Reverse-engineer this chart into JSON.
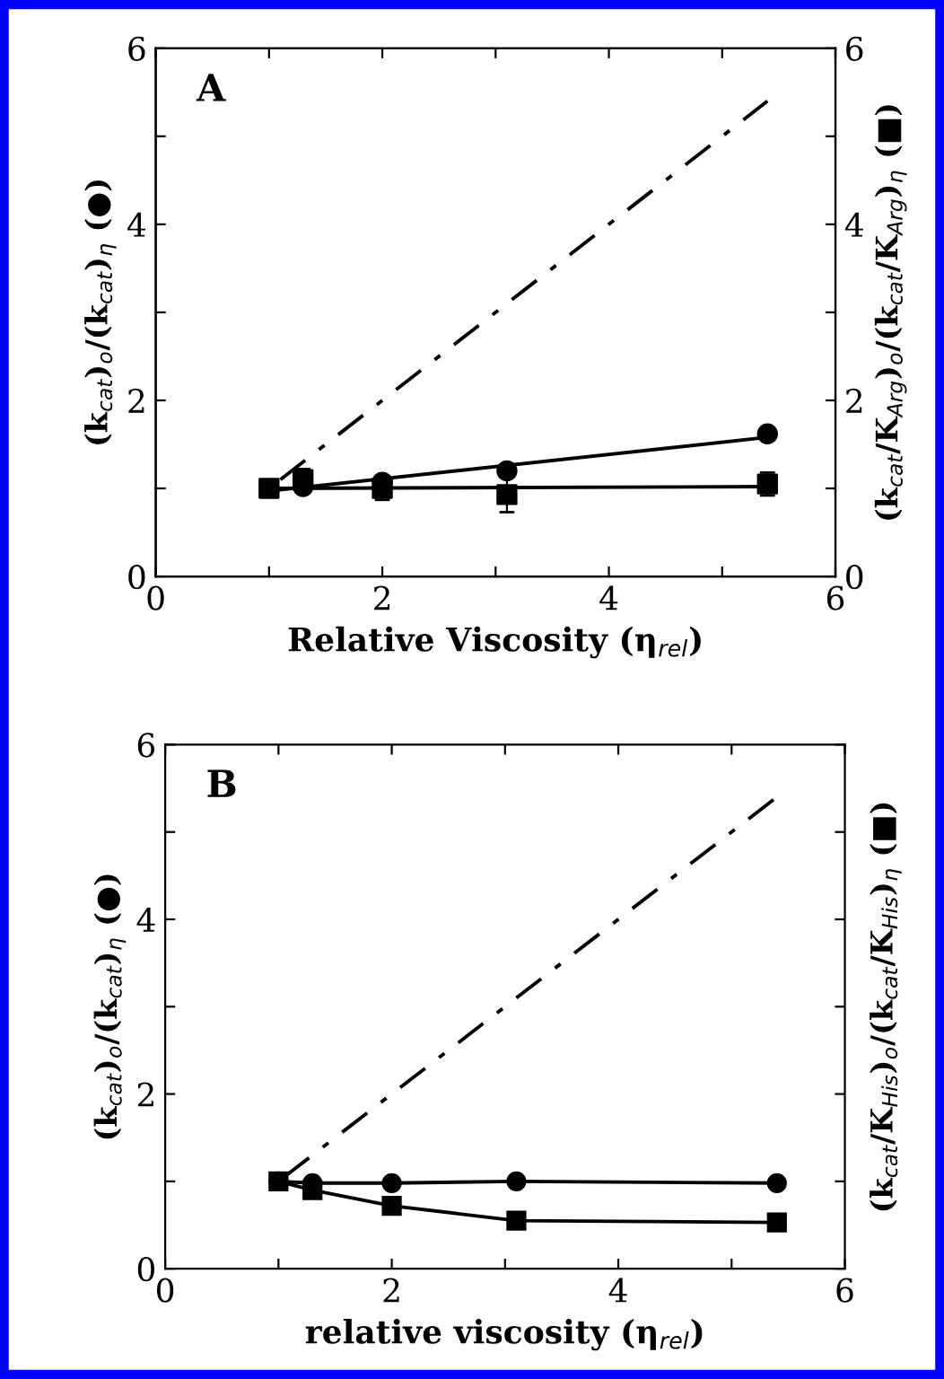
{
  "chart_data": [
    {
      "type": "scatter",
      "xlabel": "Relative Viscosity (η$_{rel}$)",
      "ylabel": "(k$_{cat}$)$_{o}$/(k$_{cat}$)$_{η}$ (●)",
      "y2label": "(k$_{cat}$/K$_{Arg}$)$_{o}$/(k$_{cat}$/K$_{Arg}$)$_{η}$ (■)",
      "annotations": [
        "A"
      ],
      "xlim": [
        0,
        6
      ],
      "xticks": [
        0,
        {
          "value": 1,
          "label": null
        },
        2,
        {
          "value": 3,
          "label": null
        },
        4,
        {
          "value": 5,
          "label": null
        },
        6
      ],
      "ylim": [
        0,
        6
      ],
      "yticks": [
        0,
        {
          "value": 1,
          "label": null
        },
        2,
        {
          "value": 3,
          "label": null
        },
        4,
        {
          "value": 5,
          "label": null
        },
        6
      ],
      "y2lim": [
        0,
        6
      ],
      "y2ticks": [
        0,
        {
          "value": 1,
          "label": null
        },
        2,
        {
          "value": 3,
          "label": null
        },
        4,
        {
          "value": 5,
          "label": null
        },
        6
      ],
      "grid": false,
      "legend": false,
      "series": [
        {
          "type": "line",
          "color": "#000000",
          "line_style": "dashed",
          "marker": "none",
          "x": [
            1.1,
            5.4
          ],
          "values": [
            1.1,
            5.4
          ]
        },
        {
          "type": "line",
          "color": "#000000",
          "line_style": "solid",
          "marker": "none",
          "x": [
            1,
            5.4
          ],
          "values": [
            0.97,
            1.58
          ]
        },
        {
          "type": "line",
          "color": "#000000",
          "line_style": "solid",
          "marker": "none",
          "x": [
            1,
            5.4
          ],
          "values": [
            1.0,
            1.02
          ]
        },
        {
          "color": "#000000",
          "marker": "circle",
          "x": [
            1.3,
            2,
            3.1,
            5.4
          ],
          "values": [
            1.02,
            1.07,
            1.2,
            1.62
          ],
          "errors": [
            null,
            null,
            0.05,
            null
          ]
        },
        {
          "color": "#000000",
          "marker": "square",
          "x": [
            1,
            1.3,
            2,
            3.1,
            5.4
          ],
          "values": [
            1.0,
            1.1,
            1.0,
            0.93,
            1.05
          ],
          "errors": [
            null,
            0.12,
            0.13,
            0.2,
            0.13
          ]
        }
      ]
    },
    {
      "type": "line",
      "xlabel": "relative viscosity (η$_{rel}$)",
      "ylabel": "(k$_{cat}$)$_{o}$/(k$_{cat}$)$_{η}$ (●)",
      "y2label": "(k$_{cat}$/K$_{His}$)$_{o}$/(k$_{cat}$/K$_{His}$)$_{η}$ (■)",
      "annotations": [
        "B"
      ],
      "xlim": [
        0,
        6
      ],
      "xticks": [
        0,
        {
          "value": 1,
          "label": null
        },
        2,
        {
          "value": 3,
          "label": null
        },
        4,
        {
          "value": 5,
          "label": null
        },
        6
      ],
      "ylim": [
        0,
        6
      ],
      "yticks": [
        0,
        {
          "value": 1,
          "label": null
        },
        2,
        {
          "value": 3,
          "label": null
        },
        4,
        {
          "value": 5,
          "label": null
        },
        6
      ],
      "grid": false,
      "legend": false,
      "series": [
        {
          "color": "#000000",
          "line_style": "dashed",
          "marker": "none",
          "x": [
            1.05,
            5.4
          ],
          "values": [
            1.05,
            5.4
          ]
        },
        {
          "color": "#000000",
          "line_style": "solid",
          "marker": "circle",
          "x": [
            1,
            1.3,
            2,
            3.1,
            5.4
          ],
          "values": [
            1.0,
            0.98,
            0.98,
            1.0,
            0.98
          ]
        },
        {
          "color": "#000000",
          "line_style": "solid",
          "marker": "square",
          "x": [
            1,
            1.3,
            2,
            3.1,
            5.4
          ],
          "values": [
            1.0,
            0.9,
            0.72,
            0.55,
            0.53
          ]
        }
      ]
    }
  ]
}
